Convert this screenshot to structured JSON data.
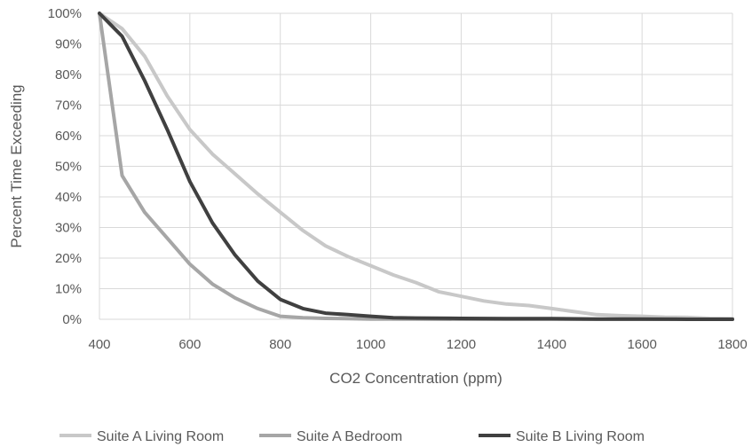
{
  "chart_data": {
    "type": "line",
    "title": "",
    "xlabel": "CO2 Concentration (ppm)",
    "ylabel": "Percent Time Exceeding",
    "xlim": [
      400,
      1800
    ],
    "ylim": [
      0,
      100
    ],
    "x_ticks": [
      "400",
      "600",
      "800",
      "1000",
      "1200",
      "1400",
      "1600",
      "1800"
    ],
    "y_ticks": [
      "0%",
      "10%",
      "20%",
      "30%",
      "40%",
      "50%",
      "60%",
      "70%",
      "80%",
      "90%",
      "100%"
    ],
    "grid": true,
    "legend_position": "bottom",
    "series": [
      {
        "name": "Suite A Living Room",
        "color": "#c8c8c8",
        "x": [
          400,
          450,
          500,
          550,
          600,
          650,
          700,
          750,
          800,
          850,
          900,
          950,
          1000,
          1050,
          1100,
          1150,
          1200,
          1250,
          1300,
          1350,
          1400,
          1450,
          1500,
          1550,
          1600,
          1650,
          1700,
          1750,
          1800
        ],
        "y": [
          100,
          95,
          86,
          73,
          62,
          54,
          47.5,
          41,
          35,
          29,
          24,
          20.5,
          17.5,
          14.5,
          12,
          9,
          7.5,
          6,
          5,
          4.5,
          3.5,
          2.5,
          1.5,
          1.2,
          1,
          0.7,
          0.6,
          0.3,
          0.2
        ]
      },
      {
        "name": "Suite A Bedroom",
        "color": "#a6a6a6",
        "x": [
          400,
          450,
          500,
          550,
          600,
          650,
          700,
          750,
          800,
          850,
          900,
          950,
          1000,
          1050,
          1100,
          1200,
          1400,
          1600,
          1800
        ],
        "y": [
          100,
          47,
          35,
          26.5,
          18,
          11.5,
          7,
          3.5,
          1,
          0.5,
          0.3,
          0.2,
          0.1,
          0.1,
          0.1,
          0,
          0,
          0,
          0
        ]
      },
      {
        "name": "Suite B Living Room",
        "color": "#404040",
        "x": [
          400,
          450,
          500,
          550,
          600,
          650,
          700,
          750,
          800,
          850,
          900,
          950,
          1000,
          1050,
          1100,
          1200,
          1300,
          1400,
          1500,
          1600,
          1700,
          1800
        ],
        "y": [
          100,
          92.5,
          78,
          62,
          45,
          31.5,
          21,
          12.5,
          6.5,
          3.5,
          2,
          1.5,
          1,
          0.5,
          0.4,
          0.3,
          0.2,
          0.2,
          0.1,
          0.1,
          0,
          0
        ]
      }
    ]
  }
}
